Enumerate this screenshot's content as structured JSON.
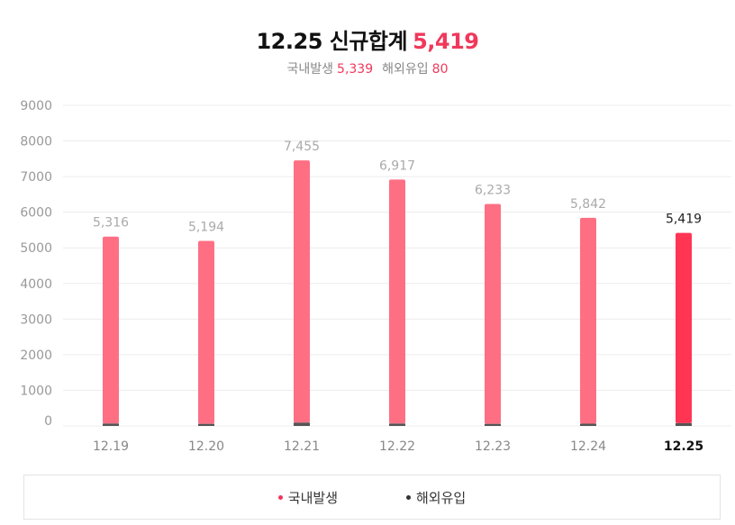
{
  "header": {
    "title_prefix": "12.25 신규합계",
    "title_value": "5,419",
    "domestic_label": "국내발생",
    "domestic_value": "5,339",
    "overseas_label": "해외유입",
    "overseas_value": "80"
  },
  "colors": {
    "domestic": "#ff6f84",
    "domestic_highlight": "#ff3553",
    "overseas": "#555555",
    "accent": "#f0385b",
    "grid": "#ececec",
    "axis_text": "#999999"
  },
  "legend": [
    {
      "label": "국내발생",
      "color": "#f0385b"
    },
    {
      "label": "해외유입",
      "color": "#333333"
    }
  ],
  "chart_data": {
    "type": "bar",
    "stacked": true,
    "categories": [
      "12.19",
      "12.20",
      "12.21",
      "12.22",
      "12.23",
      "12.24",
      "12.25"
    ],
    "totals": [
      5316,
      5194,
      7455,
      6917,
      6233,
      5842,
      5419
    ],
    "total_labels": [
      "5,316",
      "5,194",
      "7,455",
      "6,917",
      "6,233",
      "5,842",
      "5,419"
    ],
    "series": [
      {
        "name": "국내발생",
        "values": [
          5246,
          5134,
          7359,
          6848,
          6173,
          5778,
          5339
        ]
      },
      {
        "name": "해외유입",
        "values": [
          70,
          60,
          96,
          69,
          60,
          64,
          80
        ]
      }
    ],
    "highlight_index": 6,
    "ylim": [
      0,
      9000
    ],
    "yticks": [
      0,
      1000,
      2000,
      3000,
      4000,
      5000,
      6000,
      7000,
      8000,
      9000
    ],
    "grid": true
  }
}
